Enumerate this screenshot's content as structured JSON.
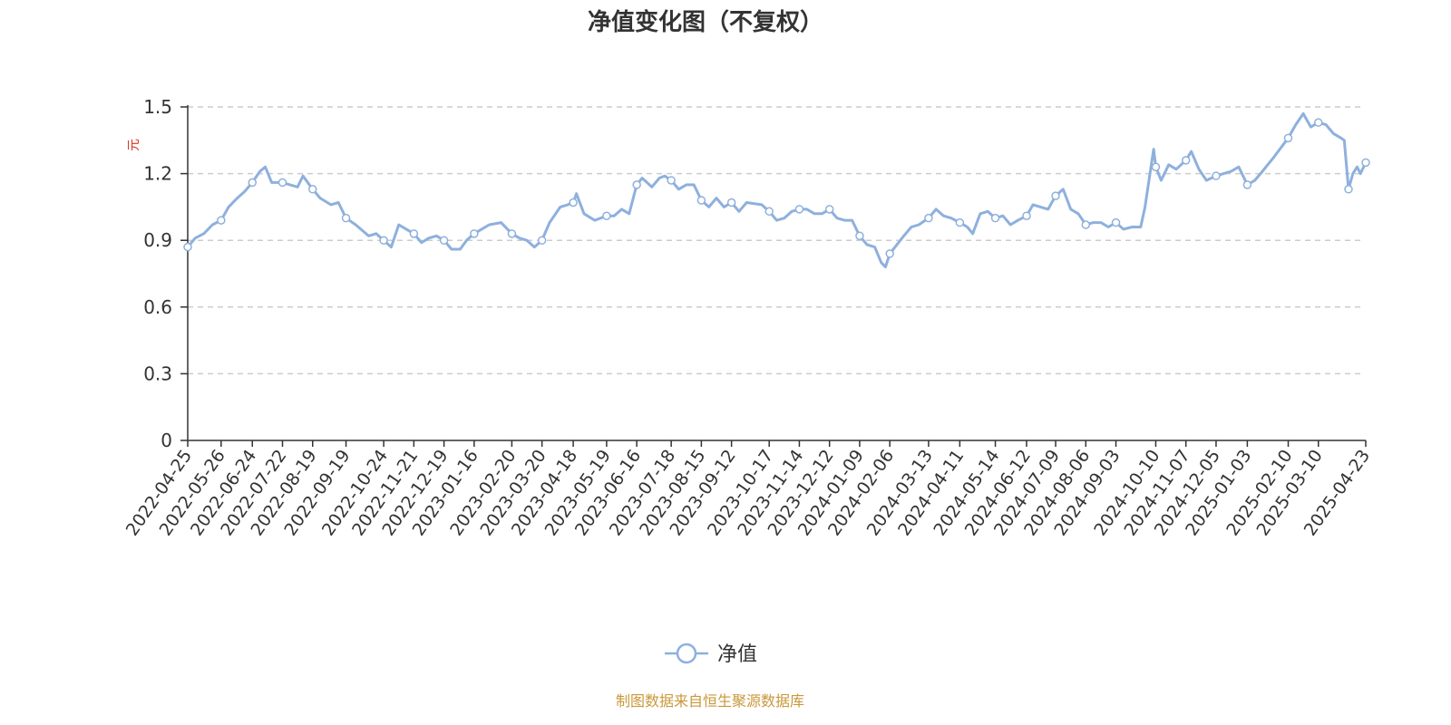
{
  "chart_data": {
    "type": "line",
    "title": "净值变化图（不复权）",
    "ylabel": "元",
    "xlabel": "",
    "ylim": [
      0,
      1.5
    ],
    "y_ticks": [
      "0",
      "0.3",
      "0.6",
      "0.9",
      "1.2",
      "1.5"
    ],
    "grid": true,
    "legend_position": "bottom-center",
    "x_tick_labels": [
      "2022-04-25",
      "2022-05-26",
      "2022-06-24",
      "2022-07-22",
      "2022-08-19",
      "2022-09-19",
      "2022-10-24",
      "2022-11-21",
      "2022-12-19",
      "2023-01-16",
      "2023-02-20",
      "2023-03-20",
      "2023-04-18",
      "2023-05-19",
      "2023-06-16",
      "2023-07-18",
      "2023-08-15",
      "2023-09-12",
      "2023-10-17",
      "2023-11-14",
      "2023-12-12",
      "2024-01-09",
      "2024-02-06",
      "2024-03-13",
      "2024-04-11",
      "2024-05-14",
      "2024-06-12",
      "2024-07-09",
      "2024-08-06",
      "2024-09-03",
      "2024-10-10",
      "2024-11-07",
      "2024-12-05",
      "2025-01-03",
      "2025-02-10",
      "2025-03-10",
      "2025-04-23"
    ],
    "series": [
      {
        "name": "净值",
        "color": "#8eb0dd",
        "x": [
          "2022-04-25",
          "2022-05-26",
          "2022-06-24",
          "2022-07-22",
          "2022-08-19",
          "2022-09-19",
          "2022-10-24",
          "2022-11-21",
          "2022-12-19",
          "2023-01-16",
          "2023-02-20",
          "2023-03-20",
          "2023-04-18",
          "2023-05-19",
          "2023-06-16",
          "2023-07-18",
          "2023-08-15",
          "2023-09-12",
          "2023-10-17",
          "2023-11-14",
          "2023-12-12",
          "2024-01-09",
          "2024-02-06",
          "2024-03-13",
          "2024-04-11",
          "2024-05-14",
          "2024-06-12",
          "2024-07-09",
          "2024-08-06",
          "2024-09-03",
          "2024-10-10",
          "2024-11-07",
          "2024-12-05",
          "2025-01-03",
          "2025-02-10",
          "2025-03-10",
          "2025-04-07",
          "2025-04-23"
        ],
        "values": [
          0.87,
          0.99,
          1.16,
          1.16,
          1.13,
          1.0,
          0.9,
          0.93,
          0.9,
          0.93,
          0.93,
          0.9,
          1.07,
          1.01,
          1.15,
          1.17,
          1.08,
          1.07,
          1.03,
          1.04,
          1.04,
          0.92,
          0.84,
          1.0,
          0.98,
          1.0,
          1.01,
          1.1,
          0.97,
          0.98,
          1.23,
          1.26,
          1.19,
          1.15,
          1.36,
          1.43,
          1.13,
          1.25
        ],
        "path": [
          [
            "2022-04-25",
            0.87
          ],
          [
            "2022-05-02",
            0.91
          ],
          [
            "2022-05-10",
            0.93
          ],
          [
            "2022-05-18",
            0.97
          ],
          [
            "2022-05-26",
            0.99
          ],
          [
            "2022-06-02",
            1.05
          ],
          [
            "2022-06-10",
            1.09
          ],
          [
            "2022-06-17",
            1.12
          ],
          [
            "2022-06-24",
            1.16
          ],
          [
            "2022-07-01",
            1.21
          ],
          [
            "2022-07-06",
            1.23
          ],
          [
            "2022-07-12",
            1.16
          ],
          [
            "2022-07-22",
            1.16
          ],
          [
            "2022-07-29",
            1.15
          ],
          [
            "2022-08-05",
            1.14
          ],
          [
            "2022-08-10",
            1.19
          ],
          [
            "2022-08-19",
            1.13
          ],
          [
            "2022-08-26",
            1.09
          ],
          [
            "2022-09-05",
            1.06
          ],
          [
            "2022-09-12",
            1.07
          ],
          [
            "2022-09-19",
            1.0
          ],
          [
            "2022-09-28",
            0.97
          ],
          [
            "2022-10-10",
            0.92
          ],
          [
            "2022-10-17",
            0.93
          ],
          [
            "2022-10-24",
            0.9
          ],
          [
            "2022-10-31",
            0.87
          ],
          [
            "2022-11-07",
            0.97
          ],
          [
            "2022-11-14",
            0.95
          ],
          [
            "2022-11-21",
            0.93
          ],
          [
            "2022-11-28",
            0.89
          ],
          [
            "2022-12-05",
            0.91
          ],
          [
            "2022-12-12",
            0.92
          ],
          [
            "2022-12-19",
            0.9
          ],
          [
            "2022-12-26",
            0.86
          ],
          [
            "2023-01-03",
            0.86
          ],
          [
            "2023-01-09",
            0.9
          ],
          [
            "2023-01-16",
            0.93
          ],
          [
            "2023-01-30",
            0.97
          ],
          [
            "2023-02-10",
            0.98
          ],
          [
            "2023-02-20",
            0.93
          ],
          [
            "2023-02-27",
            0.91
          ],
          [
            "2023-03-06",
            0.9
          ],
          [
            "2023-03-13",
            0.87
          ],
          [
            "2023-03-20",
            0.9
          ],
          [
            "2023-03-27",
            0.98
          ],
          [
            "2023-04-06",
            1.05
          ],
          [
            "2023-04-13",
            1.06
          ],
          [
            "2023-04-18",
            1.07
          ],
          [
            "2023-04-21",
            1.11
          ],
          [
            "2023-04-28",
            1.02
          ],
          [
            "2023-05-08",
            0.99
          ],
          [
            "2023-05-19",
            1.01
          ],
          [
            "2023-05-26",
            1.01
          ],
          [
            "2023-06-02",
            1.04
          ],
          [
            "2023-06-09",
            1.02
          ],
          [
            "2023-06-16",
            1.15
          ],
          [
            "2023-06-21",
            1.18
          ],
          [
            "2023-06-30",
            1.14
          ],
          [
            "2023-07-07",
            1.18
          ],
          [
            "2023-07-12",
            1.19
          ],
          [
            "2023-07-18",
            1.17
          ],
          [
            "2023-07-25",
            1.13
          ],
          [
            "2023-08-01",
            1.15
          ],
          [
            "2023-08-08",
            1.15
          ],
          [
            "2023-08-15",
            1.08
          ],
          [
            "2023-08-22",
            1.05
          ],
          [
            "2023-08-29",
            1.09
          ],
          [
            "2023-09-05",
            1.05
          ],
          [
            "2023-09-12",
            1.07
          ],
          [
            "2023-09-19",
            1.03
          ],
          [
            "2023-09-26",
            1.07
          ],
          [
            "2023-10-10",
            1.06
          ],
          [
            "2023-10-17",
            1.03
          ],
          [
            "2023-10-24",
            0.99
          ],
          [
            "2023-10-31",
            1.0
          ],
          [
            "2023-11-07",
            1.03
          ],
          [
            "2023-11-14",
            1.04
          ],
          [
            "2023-11-21",
            1.04
          ],
          [
            "2023-11-28",
            1.02
          ],
          [
            "2023-12-05",
            1.02
          ],
          [
            "2023-12-12",
            1.04
          ],
          [
            "2023-12-19",
            1.0
          ],
          [
            "2023-12-26",
            0.99
          ],
          [
            "2024-01-02",
            0.99
          ],
          [
            "2024-01-09",
            0.92
          ],
          [
            "2024-01-16",
            0.88
          ],
          [
            "2024-01-23",
            0.87
          ],
          [
            "2024-01-29",
            0.8
          ],
          [
            "2024-02-02",
            0.78
          ],
          [
            "2024-02-06",
            0.84
          ],
          [
            "2024-02-19",
            0.92
          ],
          [
            "2024-02-26",
            0.96
          ],
          [
            "2024-03-04",
            0.97
          ],
          [
            "2024-03-13",
            1.0
          ],
          [
            "2024-03-20",
            1.04
          ],
          [
            "2024-03-27",
            1.01
          ],
          [
            "2024-04-03",
            1.0
          ],
          [
            "2024-04-11",
            0.98
          ],
          [
            "2024-04-18",
            0.96
          ],
          [
            "2024-04-23",
            0.93
          ],
          [
            "2024-04-30",
            1.02
          ],
          [
            "2024-05-07",
            1.03
          ],
          [
            "2024-05-14",
            1.0
          ],
          [
            "2024-05-21",
            1.01
          ],
          [
            "2024-05-28",
            0.97
          ],
          [
            "2024-06-04",
            0.99
          ],
          [
            "2024-06-12",
            1.01
          ],
          [
            "2024-06-18",
            1.06
          ],
          [
            "2024-06-25",
            1.05
          ],
          [
            "2024-07-02",
            1.04
          ],
          [
            "2024-07-09",
            1.1
          ],
          [
            "2024-07-16",
            1.13
          ],
          [
            "2024-07-23",
            1.04
          ],
          [
            "2024-07-30",
            1.02
          ],
          [
            "2024-08-06",
            0.97
          ],
          [
            "2024-08-13",
            0.98
          ],
          [
            "2024-08-20",
            0.98
          ],
          [
            "2024-08-27",
            0.96
          ],
          [
            "2024-09-03",
            0.98
          ],
          [
            "2024-09-10",
            0.95
          ],
          [
            "2024-09-18",
            0.96
          ],
          [
            "2024-09-26",
            0.96
          ],
          [
            "2024-09-30",
            1.05
          ],
          [
            "2024-10-08",
            1.31
          ],
          [
            "2024-10-10",
            1.23
          ],
          [
            "2024-10-15",
            1.17
          ],
          [
            "2024-10-22",
            1.24
          ],
          [
            "2024-10-29",
            1.22
          ],
          [
            "2024-11-07",
            1.26
          ],
          [
            "2024-11-12",
            1.3
          ],
          [
            "2024-11-19",
            1.22
          ],
          [
            "2024-11-26",
            1.17
          ],
          [
            "2024-12-05",
            1.19
          ],
          [
            "2024-12-12",
            1.2
          ],
          [
            "2024-12-19",
            1.21
          ],
          [
            "2024-12-26",
            1.23
          ],
          [
            "2025-01-03",
            1.15
          ],
          [
            "2025-01-10",
            1.17
          ],
          [
            "2025-01-17",
            1.21
          ],
          [
            "2025-01-27",
            1.27
          ],
          [
            "2025-02-10",
            1.36
          ],
          [
            "2025-02-17",
            1.42
          ],
          [
            "2025-02-24",
            1.47
          ],
          [
            "2025-03-03",
            1.41
          ],
          [
            "2025-03-10",
            1.43
          ],
          [
            "2025-03-17",
            1.42
          ],
          [
            "2025-03-24",
            1.38
          ],
          [
            "2025-03-31",
            1.36
          ],
          [
            "2025-04-03",
            1.35
          ],
          [
            "2025-04-07",
            1.13
          ],
          [
            "2025-04-11",
            1.2
          ],
          [
            "2025-04-15",
            1.23
          ],
          [
            "2025-04-18",
            1.2
          ],
          [
            "2025-04-23",
            1.25
          ]
        ]
      }
    ]
  },
  "footer": {
    "source": "制图数据来自恒生聚源数据库",
    "source_color": "#c9983a"
  },
  "ylabel_color": "#e0301e"
}
